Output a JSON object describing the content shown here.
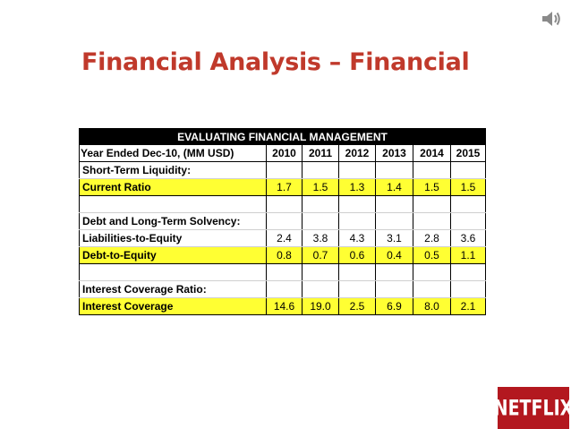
{
  "slide": {
    "title": "Financial Analysis – Financial",
    "logo_text": "NETFLIX",
    "speaker_icon": "speaker-icon"
  },
  "table": {
    "header": "EVALUATING FINANCIAL MANAGEMENT",
    "year_label": "Year Ended Dec-10, (MM USD)",
    "years": [
      "2010",
      "2011",
      "2012",
      "2013",
      "2014",
      "2015"
    ],
    "sections": {
      "liquidity": "Short-Term Liquidity:",
      "solvency": "Debt and Long-Term Solvency:",
      "coverage": "Interest Coverage Ratio:"
    },
    "rows": {
      "current_ratio": {
        "label": "Current Ratio",
        "values": [
          "1.7",
          "1.5",
          "1.3",
          "1.4",
          "1.5",
          "1.5"
        ]
      },
      "liabilities_to_equity": {
        "label": "Liabilities-to-Equity",
        "values": [
          "2.4",
          "3.8",
          "4.3",
          "3.1",
          "2.8",
          "3.6"
        ]
      },
      "debt_to_equity": {
        "label": "Debt-to-Equity",
        "values": [
          "0.8",
          "0.7",
          "0.6",
          "0.4",
          "0.5",
          "1.1"
        ]
      },
      "interest_coverage": {
        "label": "Interest Coverage",
        "values": [
          "14.6",
          "19.0",
          "2.5",
          "6.9",
          "8.0",
          "2.1"
        ]
      }
    }
  },
  "colors": {
    "title": "#c0392b",
    "highlight": "#ffff33",
    "header_bg": "#000000",
    "logo_bg": "#b3181f"
  }
}
